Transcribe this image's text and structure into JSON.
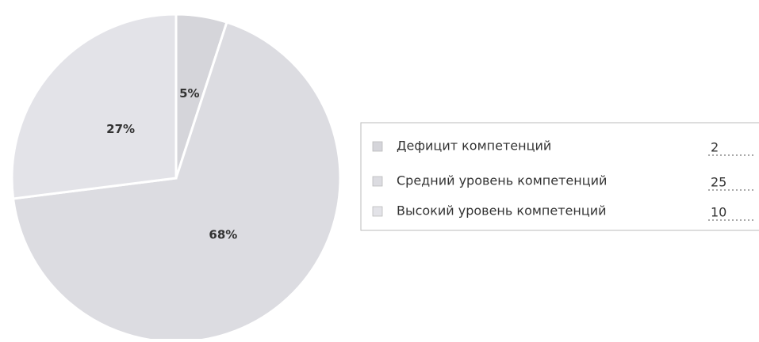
{
  "chart_data": {
    "type": "pie",
    "categories": [
      "Дефицит компетенций",
      "Средний уровень компетенций",
      "Высокий уровень компетенций"
    ],
    "values": [
      5,
      68,
      27
    ],
    "value_labels": [
      "5%",
      "68%",
      "27%"
    ],
    "counts": [
      2,
      25,
      10
    ],
    "colors": [
      "#d5d5da",
      "#dcdce1",
      "#e3e3e8"
    ],
    "legend": "right"
  }
}
